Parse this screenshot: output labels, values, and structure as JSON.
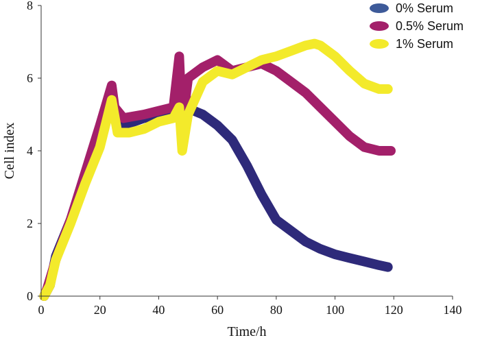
{
  "chart_data": {
    "type": "line",
    "title": "",
    "xlabel": "Time/h",
    "ylabel": "Cell index",
    "xlim": [
      0,
      140
    ],
    "ylim": [
      0,
      8
    ],
    "xticks": [
      0,
      20,
      40,
      60,
      80,
      100,
      120,
      140
    ],
    "yticks": [
      0,
      2,
      4,
      6,
      8
    ],
    "grid": false,
    "legend_position": "top-right",
    "series": [
      {
        "name": "0% Serum",
        "color": "#2e2a7a",
        "legend_color": "#3d5a99",
        "points": [
          [
            1,
            0
          ],
          [
            3,
            0.3
          ],
          [
            5,
            1.1
          ],
          [
            10,
            2.1
          ],
          [
            15,
            3.2
          ],
          [
            20,
            4.4
          ],
          [
            24,
            5.4
          ],
          [
            26,
            4.8
          ],
          [
            28,
            4.7
          ],
          [
            35,
            4.9
          ],
          [
            42,
            5.0
          ],
          [
            46,
            5.1
          ],
          [
            47,
            5.8
          ],
          [
            48,
            5.8
          ],
          [
            50,
            5.3
          ],
          [
            52,
            5.1
          ],
          [
            55,
            5.0
          ],
          [
            60,
            4.7
          ],
          [
            65,
            4.3
          ],
          [
            70,
            3.6
          ],
          [
            75,
            2.8
          ],
          [
            80,
            2.1
          ],
          [
            85,
            1.8
          ],
          [
            90,
            1.5
          ],
          [
            95,
            1.3
          ],
          [
            100,
            1.15
          ],
          [
            105,
            1.05
          ],
          [
            110,
            0.95
          ],
          [
            115,
            0.85
          ],
          [
            118,
            0.8
          ]
        ]
      },
      {
        "name": "0.5% Serum",
        "color": "#a3206a",
        "legend_color": "#a3206a",
        "points": [
          [
            1,
            0
          ],
          [
            2,
            0.2
          ],
          [
            5,
            1.0
          ],
          [
            10,
            2.1
          ],
          [
            15,
            3.4
          ],
          [
            20,
            4.7
          ],
          [
            24,
            5.8
          ],
          [
            25,
            5.2
          ],
          [
            28,
            4.9
          ],
          [
            35,
            5.0
          ],
          [
            40,
            5.1
          ],
          [
            45,
            5.2
          ],
          [
            47,
            6.6
          ],
          [
            48,
            4.7
          ],
          [
            50,
            6.0
          ],
          [
            55,
            6.3
          ],
          [
            60,
            6.5
          ],
          [
            65,
            6.2
          ],
          [
            70,
            6.3
          ],
          [
            75,
            6.4
          ],
          [
            80,
            6.2
          ],
          [
            85,
            5.9
          ],
          [
            90,
            5.6
          ],
          [
            95,
            5.2
          ],
          [
            100,
            4.8
          ],
          [
            105,
            4.4
          ],
          [
            110,
            4.1
          ],
          [
            115,
            4.0
          ],
          [
            119,
            4.0
          ]
        ]
      },
      {
        "name": "1% Serum",
        "color": "#f3ea2b",
        "legend_color": "#f3ea2b",
        "points": [
          [
            1,
            0
          ],
          [
            3,
            0.3
          ],
          [
            5,
            1.0
          ],
          [
            10,
            2.0
          ],
          [
            15,
            3.1
          ],
          [
            20,
            4.1
          ],
          [
            24,
            5.4
          ],
          [
            26,
            4.5
          ],
          [
            30,
            4.5
          ],
          [
            35,
            4.6
          ],
          [
            40,
            4.8
          ],
          [
            45,
            4.9
          ],
          [
            47,
            5.2
          ],
          [
            48,
            4.0
          ],
          [
            50,
            5.0
          ],
          [
            55,
            5.9
          ],
          [
            60,
            6.2
          ],
          [
            65,
            6.1
          ],
          [
            70,
            6.3
          ],
          [
            75,
            6.5
          ],
          [
            80,
            6.6
          ],
          [
            85,
            6.75
          ],
          [
            90,
            6.9
          ],
          [
            93,
            6.95
          ],
          [
            95,
            6.9
          ],
          [
            100,
            6.6
          ],
          [
            105,
            6.2
          ],
          [
            110,
            5.85
          ],
          [
            115,
            5.7
          ],
          [
            118,
            5.7
          ]
        ]
      }
    ]
  }
}
